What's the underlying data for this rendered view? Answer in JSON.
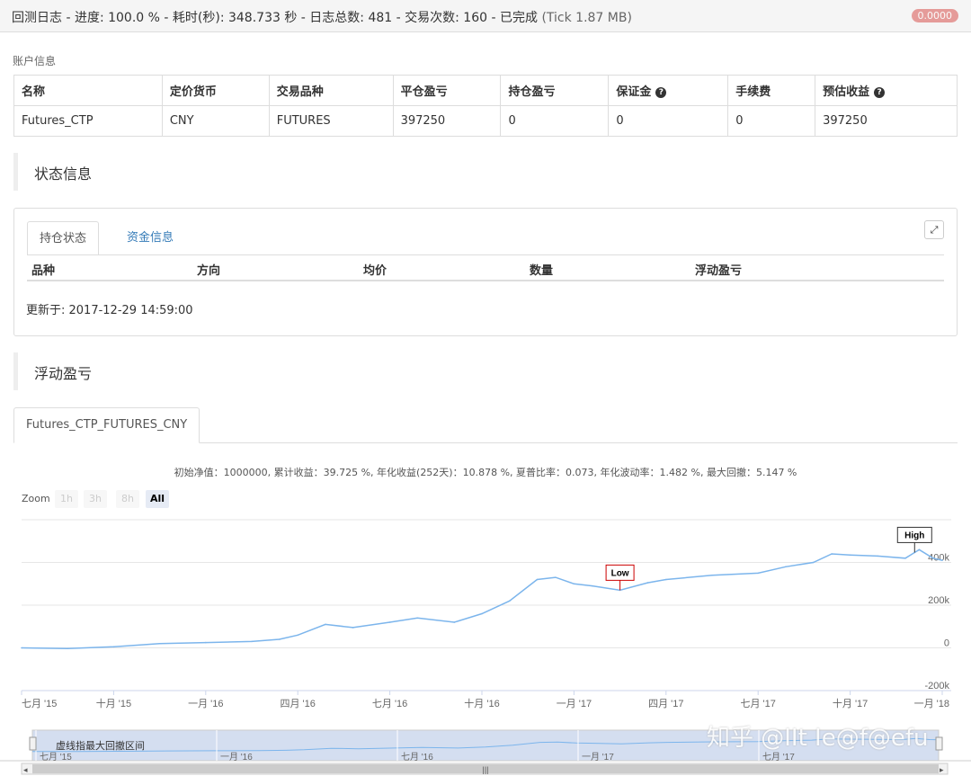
{
  "header": {
    "title_main": "回测日志 - 进度: 100.0 % - 耗时(秒): 348.733 秒 - 日志总数: 481 - 交易次数: 160 - 已完成",
    "title_tick": "(Tick 1.87 MB)",
    "badge": "0.0000"
  },
  "account": {
    "label": "账户信息",
    "columns": [
      "名称",
      "定价货币",
      "交易品种",
      "平仓盈亏",
      "持仓盈亏",
      "保证金",
      "手续费",
      "预估收益"
    ],
    "help_icon": "question-circle-icon",
    "row": [
      "Futures_CTP",
      "CNY",
      "FUTURES",
      "397250",
      "0",
      "0",
      "0",
      "397250"
    ]
  },
  "status": {
    "title": "状态信息",
    "tabs": [
      "持仓状态",
      "资金信息"
    ],
    "expand_icon": "expand-icon",
    "columns": [
      "品种",
      "方向",
      "均价",
      "数量",
      "浮动盈亏"
    ],
    "updated": "更新于: 2017-12-29 14:59:00"
  },
  "pnl": {
    "title": "浮动盈亏",
    "series_tab": "Futures_CTP_FUTURES_CNY",
    "subtitle": "初始净值：1000000, 累计收益：39.725 %, 年化收益(252天)：10.878 %, 夏普比率：0.073, 年化波动率：1.482 %, 最大回撤：5.147 %",
    "zoom_label": "Zoom",
    "zoom_buttons": [
      "1h",
      "3h",
      "8h",
      "All"
    ],
    "zoom_selected": "All",
    "navigator_label": "虚线指最大回撤区间",
    "navigator_ticks": [
      "七月 '15",
      "一月 '16",
      "七月 '16",
      "一月 '17",
      "七月 '17"
    ],
    "handle_icon": "scroll-grip-icon"
  },
  "chart_data": {
    "type": "line",
    "x_labels": [
      "七月 '15",
      "十月 '15",
      "一月 '16",
      "四月 '16",
      "七月 '16",
      "十月 '16",
      "一月 '17",
      "四月 '17",
      "七月 '17",
      "十月 '17",
      "一月 '18"
    ],
    "y_ticks": [
      "-200k",
      "0",
      "200k",
      "400k"
    ],
    "ylim": [
      -200000,
      600000
    ],
    "flags": [
      {
        "text": "Low",
        "x": 6.5
      },
      {
        "text": "High",
        "x": 9.7
      }
    ],
    "series": [
      {
        "color": "#7cb5ec",
        "x": [
          0,
          0.5,
          1,
          1.5,
          2,
          2.5,
          2.8,
          3,
          3.3,
          3.6,
          4,
          4.3,
          4.7,
          5,
          5.3,
          5.6,
          5.8,
          6,
          6.2,
          6.5,
          6.8,
          7,
          7.5,
          8,
          8.3,
          8.6,
          8.8,
          9,
          9.3,
          9.6,
          9.75,
          9.9,
          10
        ],
        "values": [
          0,
          -3000,
          5000,
          20000,
          25000,
          30000,
          40000,
          60000,
          110000,
          95000,
          120000,
          140000,
          120000,
          160000,
          220000,
          320000,
          330000,
          300000,
          290000,
          270000,
          305000,
          320000,
          340000,
          350000,
          380000,
          400000,
          440000,
          435000,
          430000,
          420000,
          460000,
          420000,
          410000
        ]
      }
    ]
  }
}
